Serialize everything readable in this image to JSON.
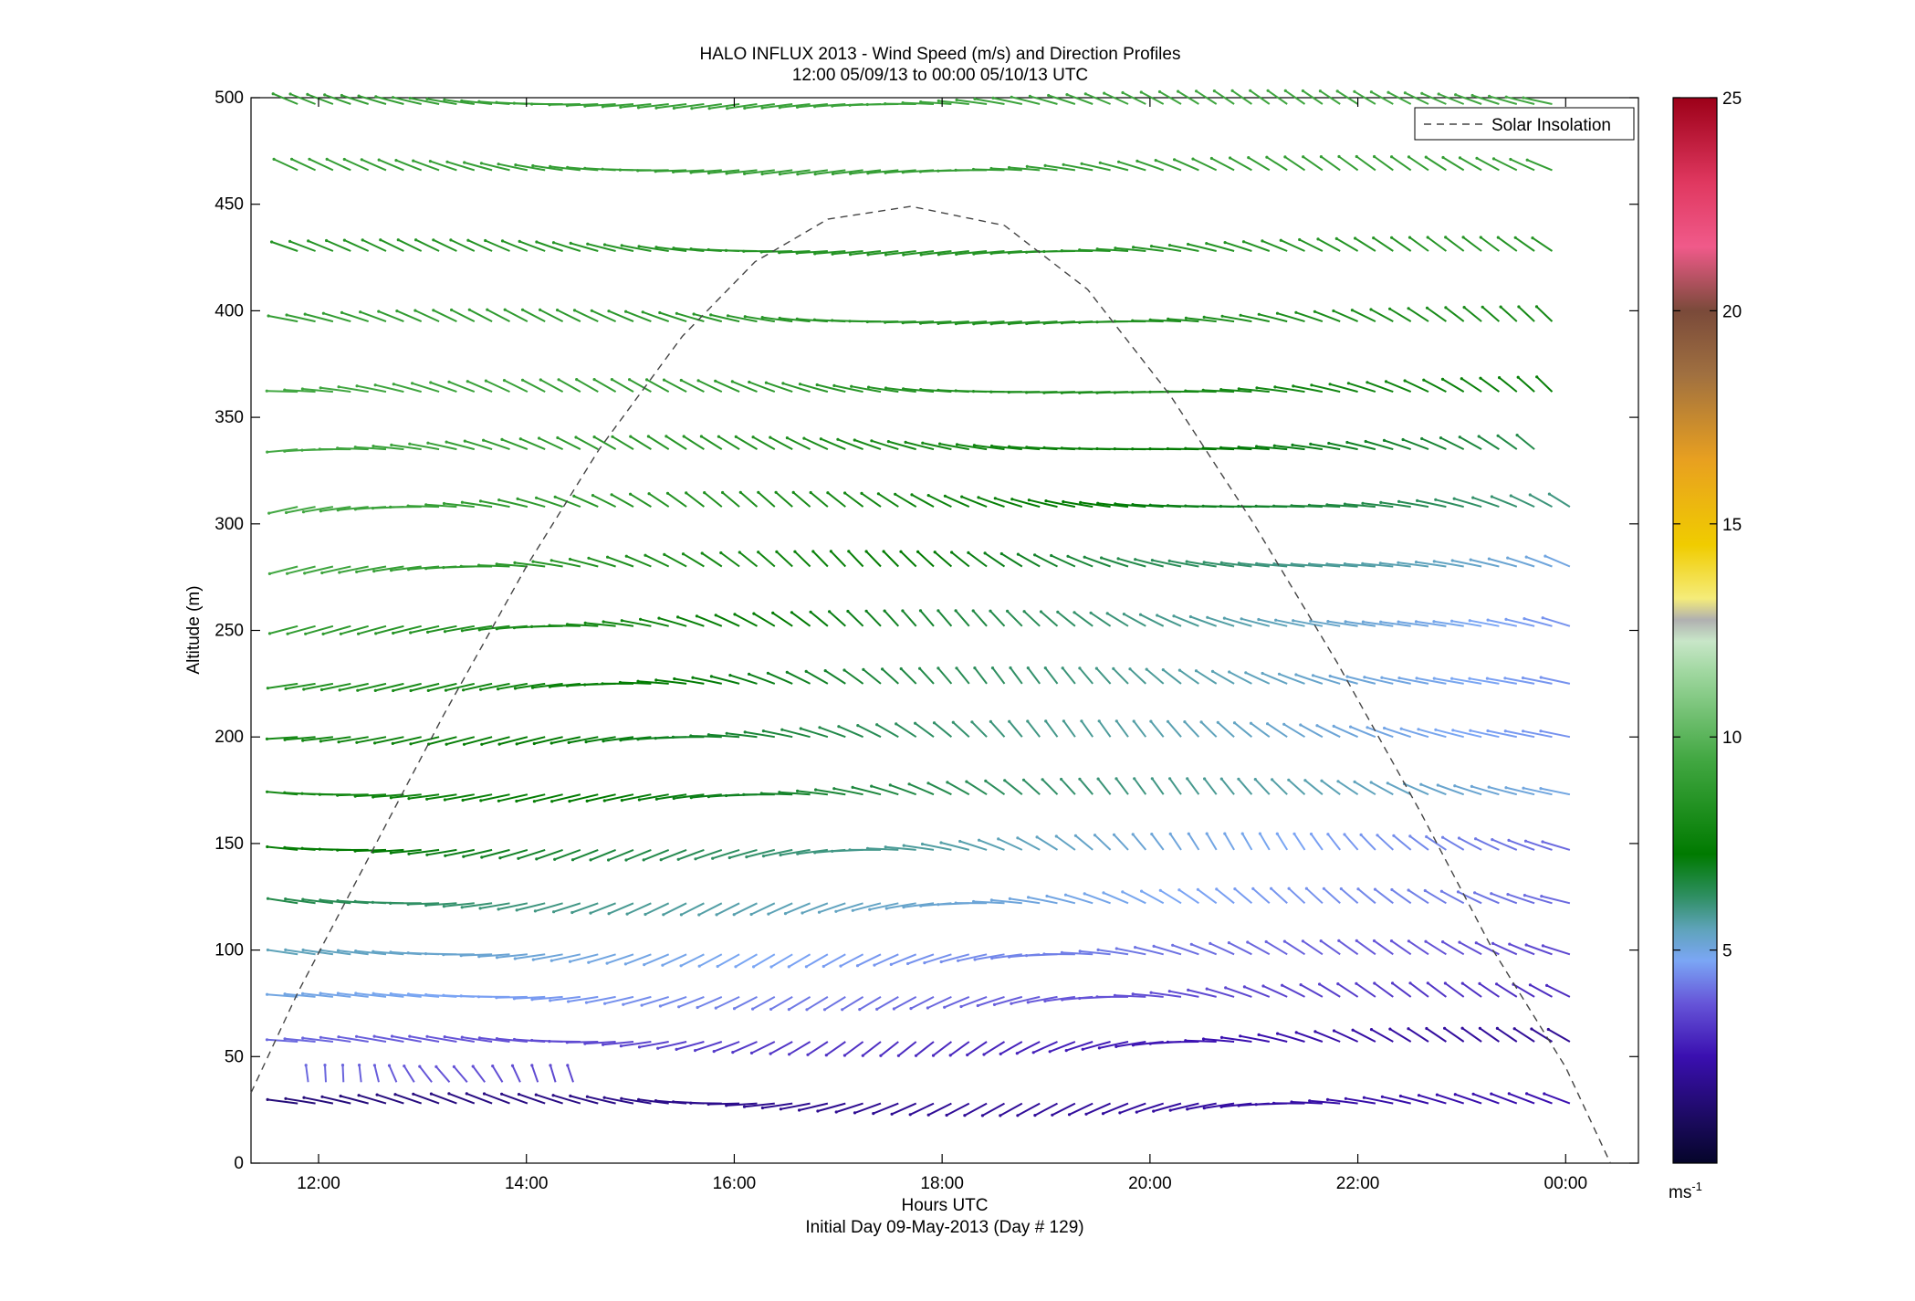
{
  "chart_data": {
    "type": "quiver",
    "title_line1": "HALO INFLUX 2013 - Wind Speed (m/s) and Direction Profiles",
    "title_line2": "12:00 05/09/13 to 00:00 05/10/13  UTC",
    "xlabel": "Hours UTC",
    "xlabel_line2": "Initial Day 09-May-2013 (Day # 129)",
    "ylabel": "Altitude (m)",
    "x_ticks": [
      {
        "hours": 12,
        "label": "12:00"
      },
      {
        "hours": 14,
        "label": "14:00"
      },
      {
        "hours": 16,
        "label": "16:00"
      },
      {
        "hours": 18,
        "label": "18:00"
      },
      {
        "hours": 20,
        "label": "20:00"
      },
      {
        "hours": 22,
        "label": "22:00"
      },
      {
        "hours": 24,
        "label": "00:00"
      }
    ],
    "x_range_hours": [
      11.35,
      24.7
    ],
    "y_ticks": [
      "0",
      "50",
      "100",
      "150",
      "200",
      "250",
      "300",
      "350",
      "400",
      "450",
      "500"
    ],
    "y_range": [
      0,
      500
    ],
    "legend": {
      "label": "Solar Insolation",
      "placement": "top-right",
      "style": "dashed"
    },
    "colorbar": {
      "range": [
        0,
        25
      ],
      "ticks": [
        "5",
        "10",
        "15",
        "20",
        "25"
      ],
      "unit_base": "ms",
      "unit_exp": "-1"
    },
    "solar_insolation": {
      "x_hours": [
        11.35,
        11.8,
        12.5,
        13.2,
        14.0,
        14.7,
        15.5,
        16.2,
        16.9,
        17.7,
        18.6,
        19.4,
        20.2,
        21.0,
        21.8,
        22.6,
        23.3,
        24.0,
        24.43
      ],
      "altitude": [
        33,
        80,
        145,
        210,
        280,
        335,
        388,
        423,
        443,
        449,
        440,
        410,
        360,
        300,
        235,
        165,
        100,
        45,
        0
      ]
    },
    "wind_rows": [
      {
        "altitude": 28,
        "x_start_hours": 11.8,
        "x_end_hours": 24.1,
        "speed_start": 1.5,
        "speed_end": 2.5,
        "dir_start": 175,
        "dir_end": 175,
        "spin": 40
      },
      {
        "altitude": 38,
        "x_start_hours": 11.9,
        "x_end_hours": 14.5,
        "speed_start": 4.0,
        "speed_end": 3.5,
        "dir_start": 260,
        "dir_end": 250,
        "spin": 10
      },
      {
        "altitude": 57,
        "x_start_hours": 11.8,
        "x_end_hours": 24.1,
        "speed_start": 4.0,
        "speed_end": 2.0,
        "dir_start": 150,
        "dir_end": 190,
        "spin": 45
      },
      {
        "altitude": 78,
        "x_start_hours": 11.8,
        "x_end_hours": 24.1,
        "speed_start": 5.0,
        "speed_end": 3.0,
        "dir_start": 150,
        "dir_end": 200,
        "spin": 40
      },
      {
        "altitude": 98,
        "x_start_hours": 11.8,
        "x_end_hours": 24.1,
        "speed_start": 5.5,
        "speed_end": 3.5,
        "dir_start": 155,
        "dir_end": 200,
        "spin": 40
      },
      {
        "altitude": 122,
        "x_start_hours": 11.8,
        "x_end_hours": 24.1,
        "speed_start": 6.5,
        "speed_end": 4.0,
        "dir_start": 160,
        "dir_end": 210,
        "spin": 40
      },
      {
        "altitude": 147,
        "x_start_hours": 11.8,
        "x_end_hours": 24.0,
        "speed_start": 7.5,
        "speed_end": 4.0,
        "dir_start": 165,
        "dir_end": 230,
        "spin": 40
      },
      {
        "altitude": 173,
        "x_start_hours": 11.8,
        "x_end_hours": 24.0,
        "speed_start": 8.0,
        "speed_end": 5.0,
        "dir_start": 180,
        "dir_end": 230,
        "spin": 35
      },
      {
        "altitude": 200,
        "x_start_hours": 11.8,
        "x_end_hours": 24.0,
        "speed_start": 8.0,
        "speed_end": 4.5,
        "dir_start": 180,
        "dir_end": 235,
        "spin": 35
      },
      {
        "altitude": 225,
        "x_start_hours": 11.8,
        "x_end_hours": 24.0,
        "speed_start": 8.5,
        "speed_end": 4.5,
        "dir_start": 185,
        "dir_end": 235,
        "spin": 35
      },
      {
        "altitude": 252,
        "x_start_hours": 11.8,
        "x_end_hours": 24.0,
        "speed_start": 9.0,
        "speed_end": 4.5,
        "dir_start": 185,
        "dir_end": 235,
        "spin": 35
      },
      {
        "altitude": 280,
        "x_start_hours": 11.8,
        "x_end_hours": 24.0,
        "speed_start": 9.5,
        "speed_end": 5.0,
        "dir_start": 190,
        "dir_end": 230,
        "spin": 35
      },
      {
        "altitude": 308,
        "x_start_hours": 11.8,
        "x_end_hours": 24.0,
        "speed_start": 9.5,
        "speed_end": 6.0,
        "dir_start": 190,
        "dir_end": 225,
        "spin": 35
      },
      {
        "altitude": 335,
        "x_start_hours": 11.8,
        "x_end_hours": 23.7,
        "speed_start": 9.5,
        "speed_end": 6.5,
        "dir_start": 190,
        "dir_end": 220,
        "spin": 30
      },
      {
        "altitude": 362,
        "x_start_hours": 11.8,
        "x_end_hours": 23.9,
        "speed_start": 9.5,
        "speed_end": 7.5,
        "dir_start": 190,
        "dir_end": 215,
        "spin": 30
      },
      {
        "altitude": 395,
        "x_start_hours": 11.8,
        "x_end_hours": 23.9,
        "speed_start": 9.0,
        "speed_end": 8.0,
        "dir_start": 190,
        "dir_end": 210,
        "spin": 30
      },
      {
        "altitude": 428,
        "x_start_hours": 11.8,
        "x_end_hours": 23.9,
        "speed_start": 8.5,
        "speed_end": 8.5,
        "dir_start": 190,
        "dir_end": 205,
        "spin": 30
      },
      {
        "altitude": 466,
        "x_start_hours": 11.8,
        "x_end_hours": 23.9,
        "speed_start": 9.0,
        "speed_end": 9.0,
        "dir_start": 190,
        "dir_end": 205,
        "spin": 30
      },
      {
        "altitude": 497,
        "x_start_hours": 11.8,
        "x_end_hours": 23.9,
        "speed_start": 9.0,
        "speed_end": 9.5,
        "dir_start": 190,
        "dir_end": 205,
        "spin": 30
      }
    ]
  }
}
